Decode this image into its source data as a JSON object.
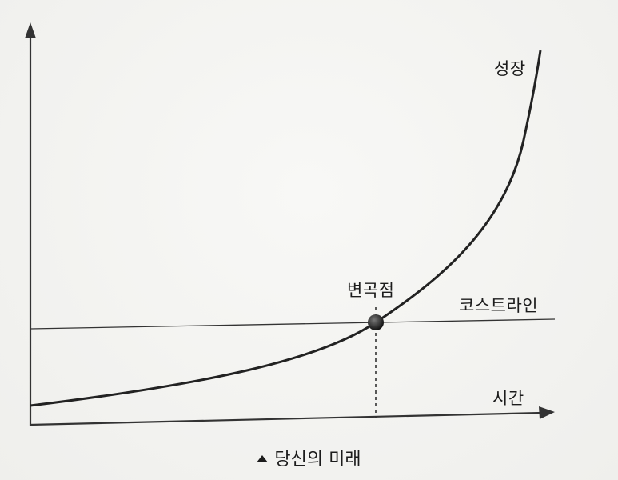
{
  "diagram": {
    "labels": {
      "growth": "성장",
      "inflection": "변곡점",
      "cost_line": "코스트라인",
      "time": "시간"
    },
    "caption": "당신의 미래",
    "caption_icon": "triangle-up-icon"
  }
}
